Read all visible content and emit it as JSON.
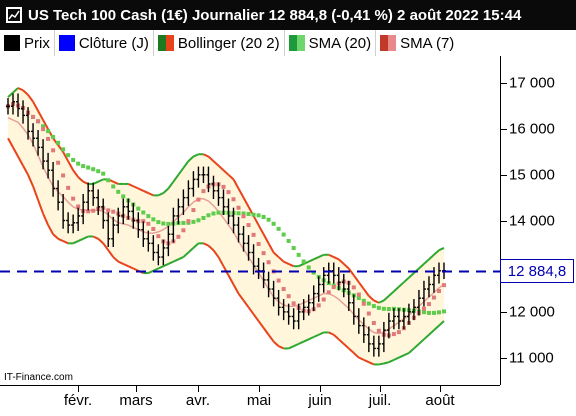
{
  "header": {
    "title": "US Tech 100 Cash (1€) Journalier 12 884,8 (-0,41 %) 2 août 2022 15:44"
  },
  "legend": {
    "items": [
      {
        "label": "Prix",
        "color": "#000000"
      },
      {
        "label": "Clôture (J)",
        "color": "#0000ff"
      },
      {
        "label": "Bollinger (20 2)",
        "colors": [
          "#1e7a1e",
          "#e8431a"
        ]
      },
      {
        "label": "SMA (20)",
        "colors": [
          "#1f9a3a",
          "#6dd66d"
        ]
      },
      {
        "label": "SMA (7)",
        "colors": [
          "#c0392b",
          "#e88a8a"
        ]
      }
    ]
  },
  "watermark": "IT-Finance.com",
  "price_tag": "12 884,8",
  "colors": {
    "bollinger_fill": "#fff6dc",
    "bollinger_upper_up": "#2ea82e",
    "bollinger_band_down": "#e8431a",
    "sma20": "#5ccc4a",
    "sma7": "#e07a7a",
    "close_line": "#0000b0"
  },
  "chart_data": {
    "type": "line",
    "title": "US Tech 100 Cash (1€) Journalier",
    "x_labels": [
      "févr.",
      "mars",
      "avr.",
      "mai",
      "juin",
      "juil.",
      "août"
    ],
    "y_ticks": [
      "17 000",
      "16 000",
      "15 000",
      "14 000",
      "13 000",
      "12 000",
      "11 000"
    ],
    "ylim": [
      10400,
      17600
    ],
    "last_close": 12884.8,
    "series": [
      {
        "name": "Prix",
        "values": [
          16500,
          16600,
          16450,
          16300,
          15950,
          15800,
          15600,
          15300,
          15100,
          14700,
          14400,
          14000,
          13900,
          13950,
          14100,
          14400,
          14650,
          14500,
          14300,
          14000,
          13600,
          13900,
          14100,
          14300,
          14200,
          14000,
          13800,
          13600,
          13500,
          13300,
          13200,
          13400,
          13700,
          14100,
          14300,
          14500,
          14700,
          14900,
          15000,
          15000,
          14800,
          14650,
          14500,
          14300,
          14100,
          13900,
          13700,
          13500,
          13300,
          13000,
          12900,
          12700,
          12500,
          12300,
          12100,
          12000,
          11900,
          11800,
          12000,
          12100,
          12200,
          12400,
          12600,
          12800,
          12900,
          12800,
          12650,
          12500,
          12200,
          11900,
          11700,
          11500,
          11300,
          11200,
          11300,
          11600,
          11800,
          11900,
          11800,
          11900,
          12000,
          12100,
          12300,
          12500,
          12600,
          12800,
          12900,
          12900
        ]
      },
      {
        "name": "Bollinger (20 2)",
        "upper": [
          16700,
          16800,
          16900,
          16850,
          16750,
          16600,
          16400,
          16200,
          16000,
          15800,
          15650,
          15500,
          15300,
          15100,
          14950,
          14850,
          14800,
          14800,
          14850,
          14900,
          14900,
          14850,
          14800,
          14800,
          14800,
          14750,
          14700,
          14650,
          14600,
          14550,
          14550,
          14600,
          14700,
          14850,
          15000,
          15150,
          15300,
          15400,
          15450,
          15450,
          15400,
          15300,
          15200,
          15100,
          15000,
          14900,
          14700,
          14500,
          14300,
          14100,
          13900,
          13700,
          13500,
          13300,
          13200,
          13100,
          13050,
          13000,
          13000,
          13050,
          13100,
          13150,
          13200,
          13250,
          13250,
          13200,
          13150,
          13050,
          12950,
          12800,
          12650,
          12500,
          12350,
          12250,
          12200,
          12250,
          12350,
          12450,
          12550,
          12650,
          12750,
          12850,
          12950,
          13050,
          13150,
          13250,
          13350,
          13400
        ],
        "lower": [
          15800,
          15600,
          15400,
          15200,
          15000,
          14750,
          14450,
          14150,
          13900,
          13700,
          13600,
          13550,
          13500,
          13500,
          13550,
          13600,
          13650,
          13650,
          13600,
          13500,
          13350,
          13200,
          13100,
          13050,
          13000,
          12950,
          12900,
          12850,
          12850,
          12900,
          12950,
          13000,
          13050,
          13100,
          13150,
          13200,
          13300,
          13400,
          13500,
          13500,
          13450,
          13350,
          13200,
          13000,
          12800,
          12600,
          12400,
          12250,
          12100,
          11950,
          11800,
          11650,
          11500,
          11350,
          11250,
          11200,
          11200,
          11250,
          11300,
          11350,
          11400,
          11450,
          11500,
          11550,
          11550,
          11500,
          11400,
          11300,
          11200,
          11100,
          11000,
          10950,
          10900,
          10850,
          10850,
          10870,
          10900,
          10950,
          11000,
          11050,
          11100,
          11200,
          11300,
          11400,
          11500,
          11600,
          11700,
          11800
        ]
      }
    ]
  }
}
